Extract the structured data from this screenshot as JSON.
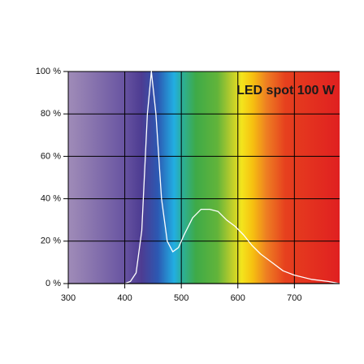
{
  "chart_data": {
    "type": "line",
    "title": "LED spot 100 W",
    "x": [
      400,
      410,
      420,
      430,
      440,
      447,
      455,
      465,
      475,
      485,
      495,
      505,
      520,
      535,
      550,
      565,
      580,
      595,
      610,
      625,
      640,
      660,
      680,
      700,
      730,
      760,
      780
    ],
    "series": [
      {
        "color": "#ffffff",
        "values": [
          0,
          1,
          5,
          25,
          80,
          100,
          80,
          40,
          20,
          15,
          17,
          23,
          31,
          35,
          35,
          34,
          30,
          27,
          23,
          18,
          14,
          10,
          6,
          4,
          2,
          1,
          0
        ]
      }
    ],
    "xlim": [
      300,
      780
    ],
    "xticks": [
      300,
      400,
      500,
      600,
      700
    ],
    "ylim": [
      0,
      100
    ],
    "yticks": [
      {
        "value": 0,
        "label": "0 %"
      },
      {
        "value": 20,
        "label": "20 %"
      },
      {
        "value": 40,
        "label": "40 %"
      },
      {
        "value": 60,
        "label": "60 %"
      },
      {
        "value": 80,
        "label": "80 %"
      },
      {
        "value": 100,
        "label": "100 %"
      }
    ],
    "grid": true
  }
}
